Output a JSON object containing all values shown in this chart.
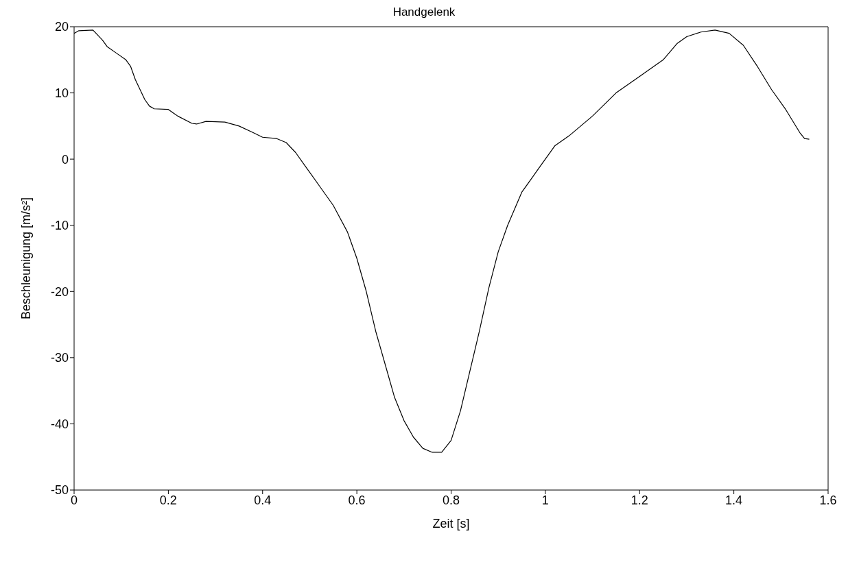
{
  "chart_data": {
    "type": "line",
    "title": "Handgelenk",
    "xlabel": "Zeit [s]",
    "ylabel": "Beschleunigung [m/s²]",
    "x": [
      0,
      0.01,
      0.04,
      0.06,
      0.07,
      0.09,
      0.11,
      0.12,
      0.13,
      0.15,
      0.16,
      0.17,
      0.2,
      0.22,
      0.25,
      0.26,
      0.28,
      0.32,
      0.35,
      0.38,
      0.4,
      0.43,
      0.45,
      0.47,
      0.49,
      0.52,
      0.55,
      0.58,
      0.6,
      0.62,
      0.64,
      0.66,
      0.68,
      0.7,
      0.72,
      0.74,
      0.76,
      0.78,
      0.8,
      0.82,
      0.84,
      0.86,
      0.88,
      0.9,
      0.92,
      0.95,
      0.98,
      1.0,
      1.02,
      1.05,
      1.1,
      1.15,
      1.2,
      1.25,
      1.28,
      1.3,
      1.33,
      1.36,
      1.39,
      1.42,
      1.45,
      1.48,
      1.51,
      1.54,
      1.55,
      1.56
    ],
    "series": [
      {
        "color": "#000000",
        "values": [
          19,
          19.4,
          19.5,
          18,
          17,
          16,
          15,
          14,
          12,
          9,
          8,
          7.6,
          7.5,
          6.5,
          5.4,
          5.3,
          5.7,
          5.6,
          5,
          4,
          3.3,
          3.1,
          2.5,
          1,
          -1,
          -4,
          -7,
          -11,
          -15,
          -20,
          -26,
          -31,
          -36,
          -39.5,
          -42,
          -43.7,
          -44.3,
          -44.3,
          -42.5,
          -38,
          -32,
          -26,
          -19.5,
          -14,
          -10,
          -5,
          -2,
          0,
          2,
          3.5,
          6.5,
          10,
          12.5,
          15,
          17.5,
          18.5,
          19.2,
          19.5,
          19,
          17.2,
          14,
          10.5,
          7.5,
          4,
          3.1,
          3
        ]
      }
    ],
    "xlim": [
      0,
      1.6
    ],
    "xticks": [
      0,
      0.2,
      0.4,
      0.6,
      0.8,
      1,
      1.2,
      1.4,
      1.6
    ],
    "ylim": [
      -50,
      20
    ],
    "yticks": [
      -50,
      -40,
      -30,
      -20,
      -10,
      0,
      10,
      20
    ],
    "grid": false,
    "legend": false,
    "marker": "none",
    "line_style": "solid"
  }
}
